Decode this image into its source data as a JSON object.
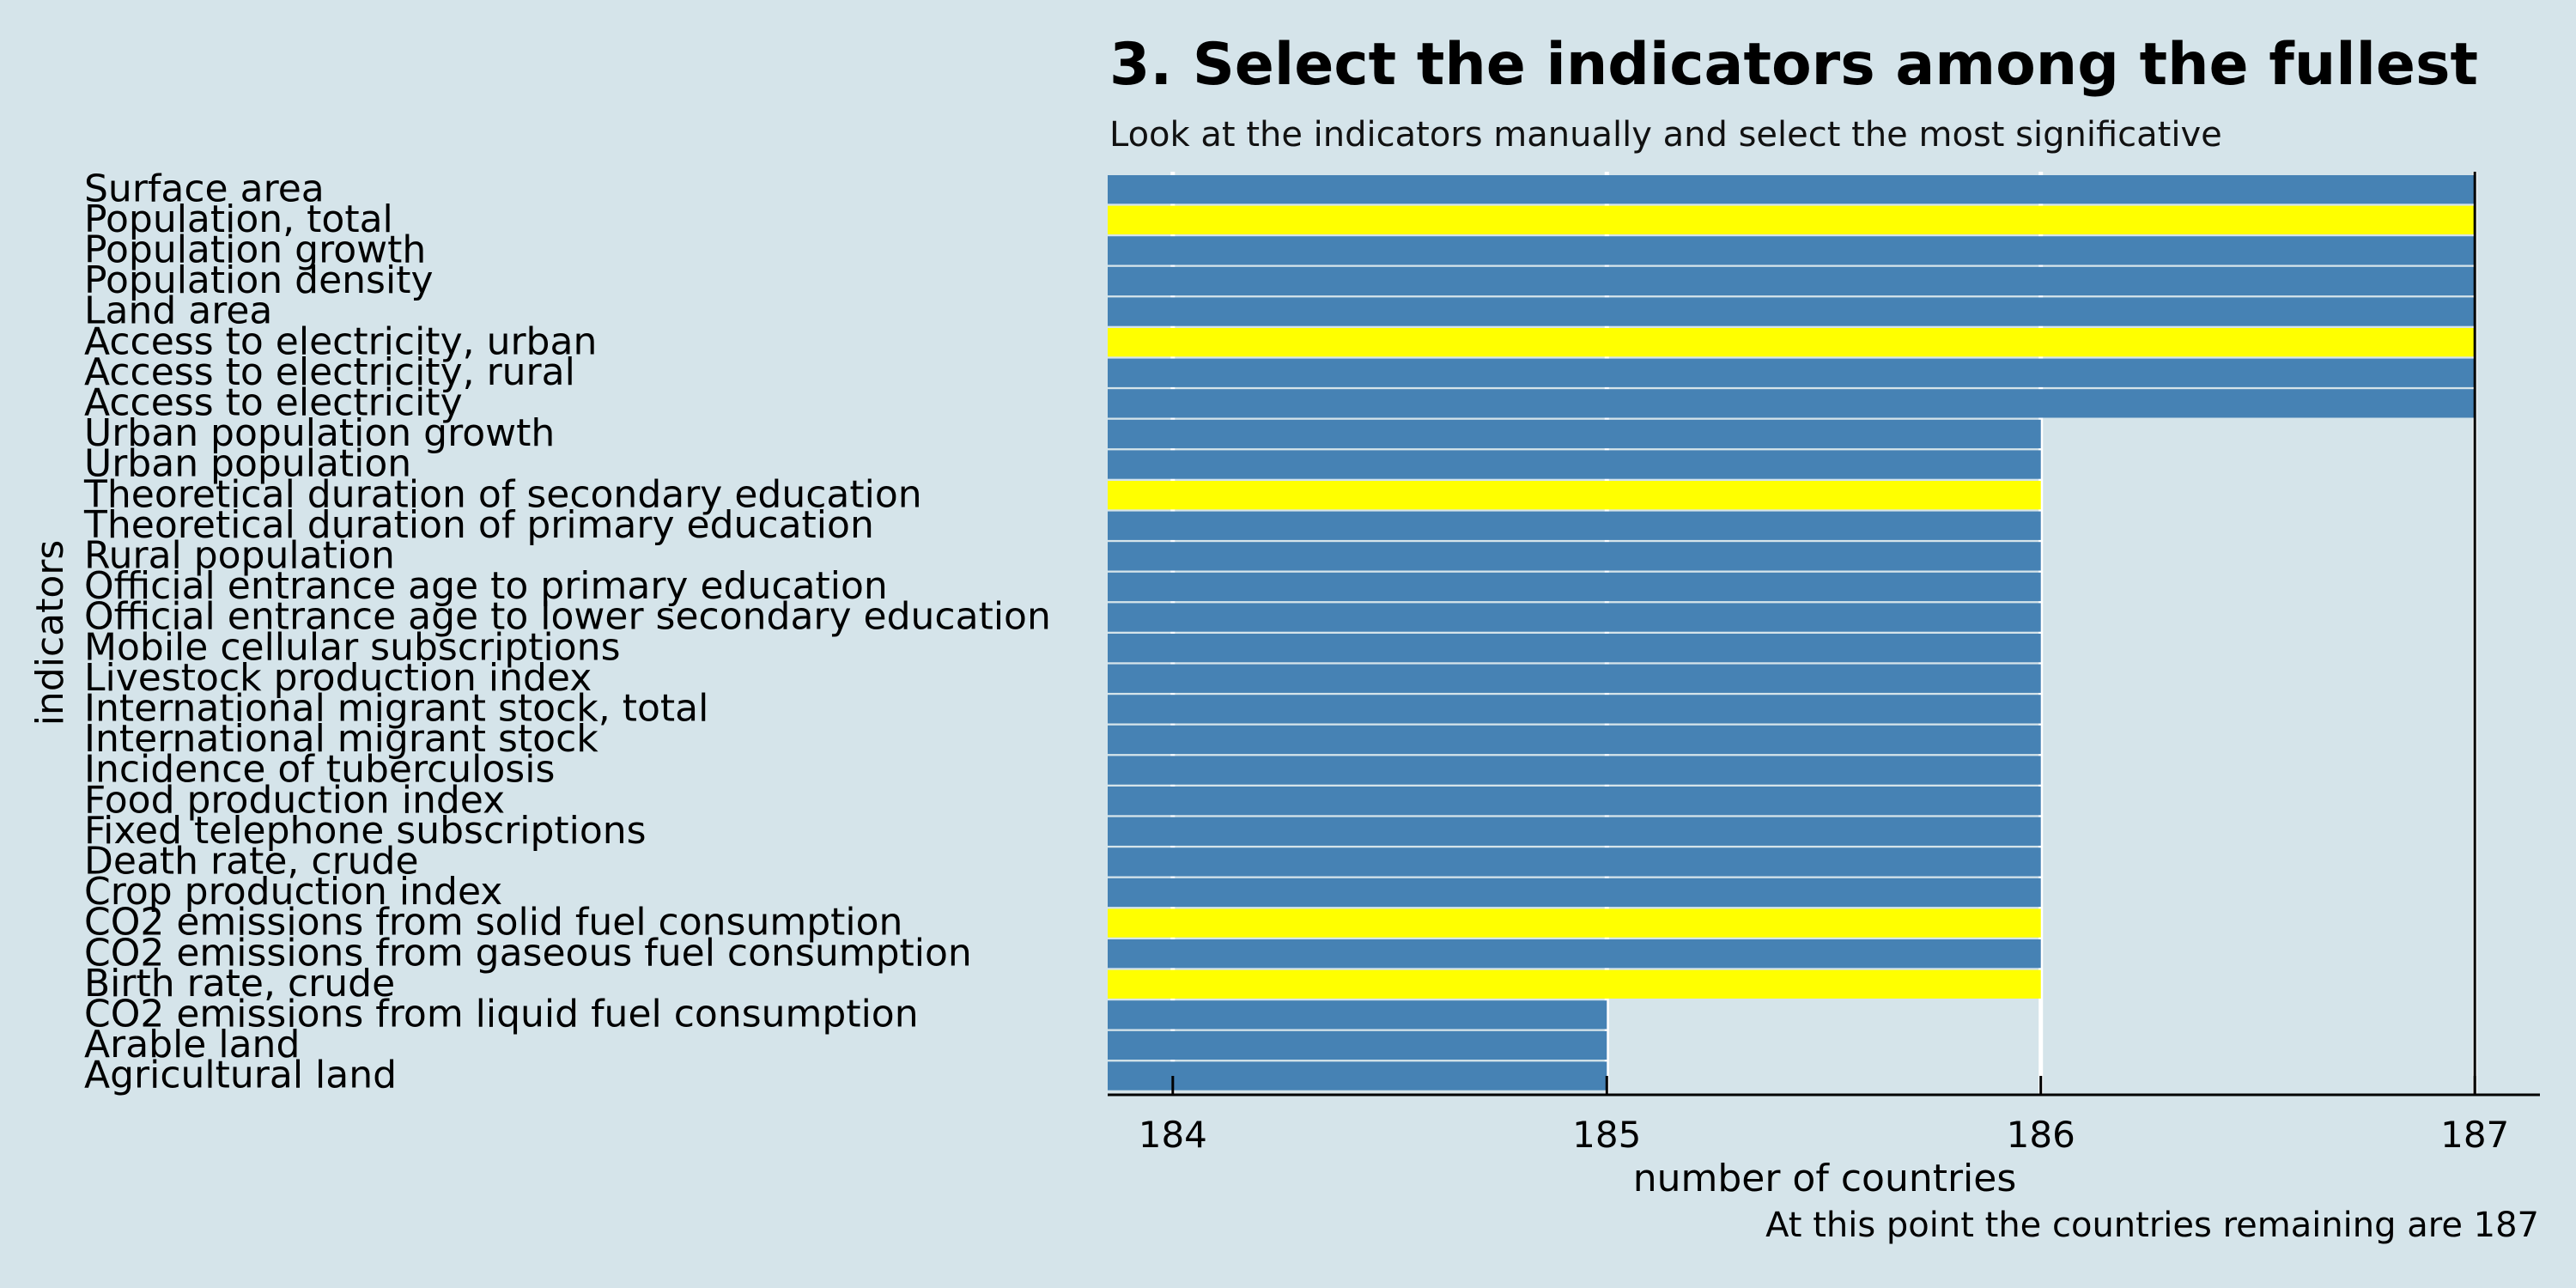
{
  "chart_data": {
    "type": "bar",
    "orientation": "horizontal",
    "title": "3. Select the indicators among the fullest",
    "subtitle": "Look at the indicators manually and select the most significative",
    "xlabel": "number of countries",
    "ylabel": "indicators",
    "caption": "At this point the countries remaining are 187",
    "xlim": [
      183.85,
      187.15
    ],
    "xticks": [
      184,
      185,
      186,
      187
    ],
    "colors": {
      "default": "#4682b4",
      "highlight": "#ffff00",
      "background": "#d5e4ea",
      "grid": "#ffffff"
    },
    "categories": [
      "Surface area",
      "Population, total",
      "Population growth",
      "Population density",
      "Land area",
      "Access to electricity, urban",
      "Access to electricity, rural",
      "Access to electricity",
      "Urban population growth",
      "Urban population",
      "Theoretical duration of secondary education",
      "Theoretical duration of primary education",
      "Rural population",
      "Official entrance age to primary education",
      "Official entrance age to lower secondary education",
      "Mobile cellular subscriptions",
      "Livestock production index",
      "International migrant stock, total",
      "International migrant stock",
      "Incidence of tuberculosis",
      "Food production index",
      "Fixed telephone subscriptions",
      "Death rate, crude",
      "Crop production index",
      "CO2 emissions from solid fuel consumption",
      "CO2 emissions from gaseous fuel consumption",
      "Birth rate, crude",
      "CO2 emissions from liquid fuel consumption",
      "Arable land",
      "Agricultural land"
    ],
    "values": [
      187,
      187,
      187,
      187,
      187,
      187,
      187,
      187,
      186,
      186,
      186,
      186,
      186,
      186,
      186,
      186,
      186,
      186,
      186,
      186,
      186,
      186,
      186,
      186,
      186,
      186,
      186,
      185,
      185,
      185
    ],
    "highlighted": [
      "Population, total",
      "Access to electricity, urban",
      "Theoretical duration of secondary education",
      "CO2 emissions from solid fuel consumption",
      "Birth rate, crude"
    ],
    "grid": "vertical major gridlines"
  }
}
